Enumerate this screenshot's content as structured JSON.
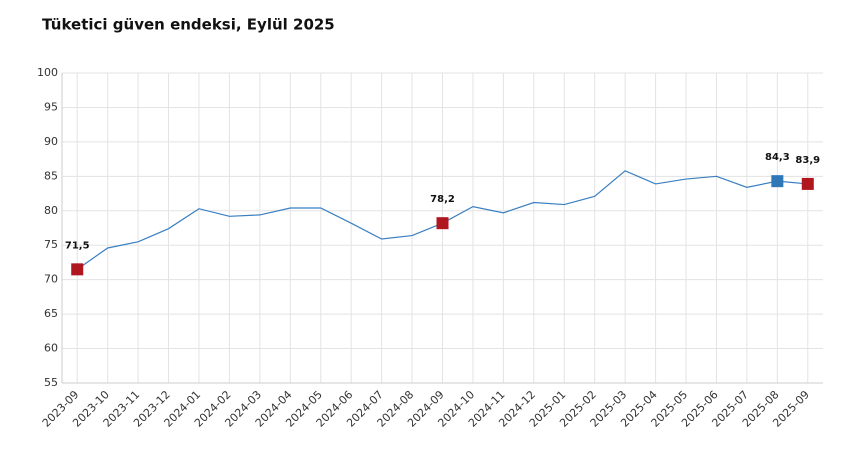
{
  "chart_data": {
    "type": "line",
    "title": "Tüketici güven endeksi, Eylül 2025",
    "categories": [
      "2023-09",
      "2023-10",
      "2023-11",
      "2023-12",
      "2024-01",
      "2024-02",
      "2024-03",
      "2024-04",
      "2024-05",
      "2024-06",
      "2024-07",
      "2024-08",
      "2024-09",
      "2024-10",
      "2024-11",
      "2024-12",
      "2025-01",
      "2025-02",
      "2025-03",
      "2025-04",
      "2025-05",
      "2025-06",
      "2025-07",
      "2025-08",
      "2025-09"
    ],
    "values": [
      71.5,
      74.6,
      75.5,
      77.4,
      80.3,
      79.2,
      79.4,
      80.4,
      80.4,
      78.2,
      75.9,
      76.4,
      78.2,
      80.6,
      79.7,
      81.2,
      80.9,
      82.1,
      85.8,
      83.9,
      84.6,
      85.0,
      83.4,
      84.3,
      83.9
    ],
    "value_labels": [
      "71,5",
      null,
      null,
      null,
      null,
      null,
      null,
      null,
      null,
      null,
      null,
      null,
      "78,2",
      null,
      null,
      null,
      null,
      null,
      null,
      null,
      null,
      null,
      null,
      "84,3",
      "83,9"
    ],
    "marker_colors": [
      "#b0161d",
      null,
      null,
      null,
      null,
      null,
      null,
      null,
      null,
      null,
      null,
      null,
      "#b0161d",
      null,
      null,
      null,
      null,
      null,
      null,
      null,
      null,
      null,
      null,
      "#2f78b8",
      "#b0161d"
    ],
    "color": "#3a7fc1",
    "ylim": [
      55,
      100
    ],
    "yticks": [
      55,
      60,
      65,
      70,
      75,
      80,
      85,
      90,
      95,
      100
    ],
    "grid": true
  }
}
